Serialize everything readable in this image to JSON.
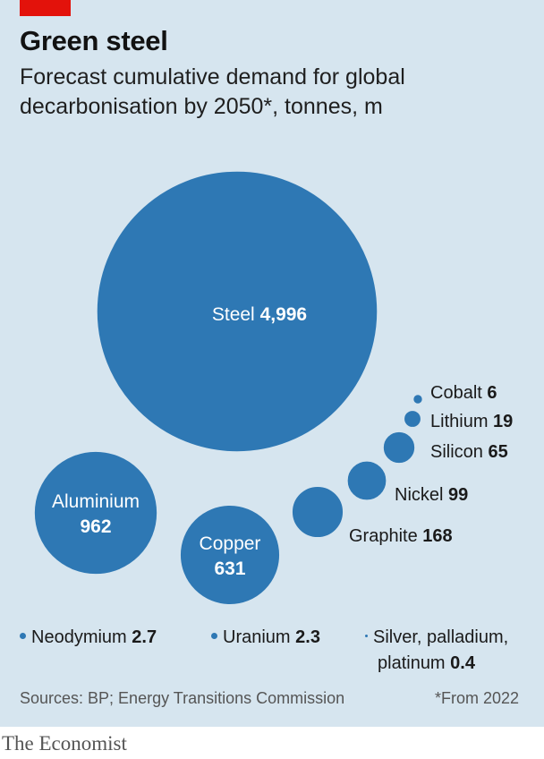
{
  "header": {
    "title": "Green steel",
    "subtitle_main": "Forecast cumulative demand for global decarbonisation by 2050*",
    "subtitle_unit": ", tonnes, m"
  },
  "colors": {
    "bubble": "#2e78b4",
    "accent": "#e3120b",
    "panel": "#d6e5ef"
  },
  "chart_data": {
    "type": "bubble",
    "title": "Green steel",
    "subtitle": "Forecast cumulative demand for global decarbonisation by 2050*, tonnes, m",
    "unit": "tonnes, m",
    "items": [
      {
        "name": "Steel",
        "value": 4996,
        "value_label": "4,996"
      },
      {
        "name": "Aluminium",
        "value": 962,
        "value_label": "962"
      },
      {
        "name": "Copper",
        "value": 631,
        "value_label": "631"
      },
      {
        "name": "Graphite",
        "value": 168,
        "value_label": "168"
      },
      {
        "name": "Nickel",
        "value": 99,
        "value_label": "99"
      },
      {
        "name": "Silicon",
        "value": 65,
        "value_label": "65"
      },
      {
        "name": "Lithium",
        "value": 19,
        "value_label": "19"
      },
      {
        "name": "Cobalt",
        "value": 6,
        "value_label": "6"
      },
      {
        "name": "Neodymium",
        "value": 2.7,
        "value_label": "2.7"
      },
      {
        "name": "Uranium",
        "value": 2.3,
        "value_label": "2.3"
      },
      {
        "name": "Silver, palladium, platinum",
        "value": 0.4,
        "value_label": "0.4"
      }
    ]
  },
  "legend": {
    "neodymium": {
      "name": "Neodymium",
      "value": "2.7"
    },
    "uranium": {
      "name": "Uranium",
      "value": "2.3"
    },
    "silver_line1": "Silver, palladium,",
    "silver_line2": "platinum",
    "silver_value": "0.4"
  },
  "footer": {
    "source": "Sources: BP; Energy Transitions Commission",
    "footnote": "*From 2022",
    "brand": "The Economist"
  }
}
